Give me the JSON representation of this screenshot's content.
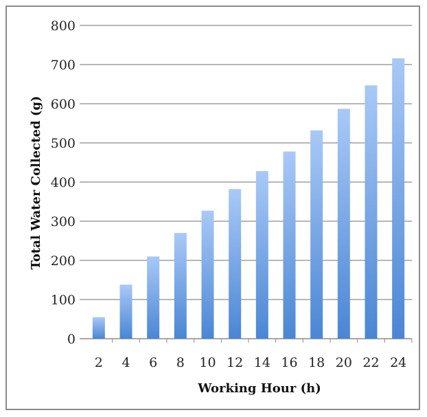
{
  "chart_data": {
    "type": "bar",
    "title": "",
    "xlabel": "Working Hour (h)",
    "ylabel": "Total Water Collected (g)",
    "categories": [
      "2",
      "4",
      "6",
      "8",
      "10",
      "12",
      "14",
      "16",
      "18",
      "20",
      "22",
      "24"
    ],
    "values": [
      55,
      138,
      210,
      270,
      327,
      382,
      428,
      478,
      532,
      587,
      647,
      716
    ],
    "ylim": [
      0,
      800
    ],
    "yticks": [
      0,
      100,
      200,
      300,
      400,
      500,
      600,
      700,
      800
    ],
    "grid": true,
    "legend": "none",
    "colors": {
      "bar_top": "#a9c9f7",
      "bar_bottom": "#4a86d4",
      "grid": "#8c8c8c"
    }
  }
}
